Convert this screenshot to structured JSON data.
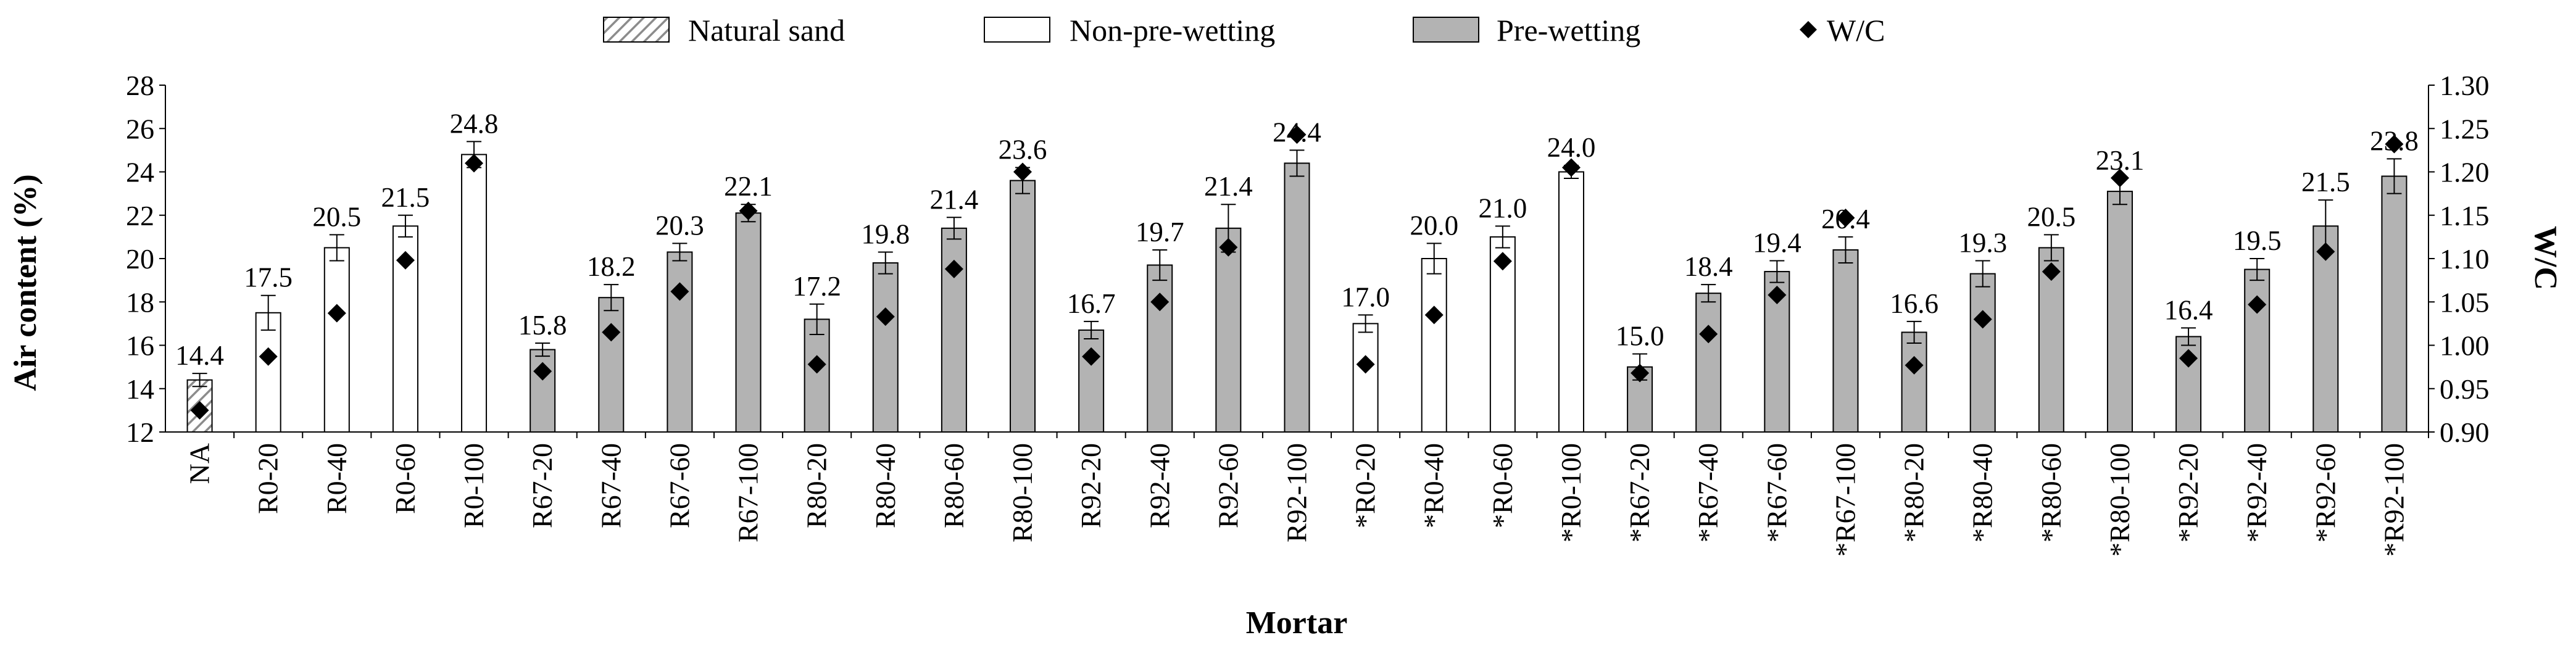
{
  "chart_data": {
    "type": "bar",
    "xlabel": "Mortar",
    "ylabel": "Air content (%)",
    "y2label": "W/C",
    "ylim": [
      12,
      28
    ],
    "y2lim": [
      0.9,
      1.3
    ],
    "yticks": [
      "12",
      "14",
      "16",
      "18",
      "20",
      "22",
      "24",
      "26",
      "28"
    ],
    "y2ticks": [
      "0.90",
      "0.95",
      "1.00",
      "1.05",
      "1.10",
      "1.15",
      "1.20",
      "1.25",
      "1.30"
    ],
    "legend_position": "top",
    "legend": [
      {
        "name": "Natural sand",
        "style": "hatched"
      },
      {
        "name": "Non-pre-wetting",
        "style": "white"
      },
      {
        "name": "Pre-wetting",
        "style": "gray"
      },
      {
        "name": "W/C",
        "style": "diamond"
      }
    ],
    "colors": {
      "pre_wetting": "#b3b3b3",
      "non_pre_wetting": "#ffffff",
      "natural_sand_hatch": "#8c8c8c",
      "marker": "#000000"
    },
    "categories": [
      "NA",
      "R0-20",
      "R0-40",
      "R0-60",
      "R0-100",
      "R67-20",
      "R67-40",
      "R67-60",
      "R67-100",
      "R80-20",
      "R80-40",
      "R80-60",
      "R80-100",
      "R92-20",
      "R92-40",
      "R92-60",
      "R92-100",
      "*R0-20",
      "*R0-40",
      "*R0-60",
      "*R0-100",
      "*R67-20",
      "*R67-40",
      "*R67-60",
      "*R67-100",
      "*R80-20",
      "*R80-40",
      "*R80-60",
      "*R80-100",
      "*R92-20",
      "*R92-40",
      "*R92-60",
      "*R92-100"
    ],
    "bar_style": [
      "hatched",
      "white",
      "white",
      "white",
      "white",
      "gray",
      "gray",
      "gray",
      "gray",
      "gray",
      "gray",
      "gray",
      "gray",
      "gray",
      "gray",
      "gray",
      "gray",
      "white",
      "white",
      "white",
      "white",
      "gray",
      "gray",
      "gray",
      "gray",
      "gray",
      "gray",
      "gray",
      "gray",
      "gray",
      "gray",
      "gray",
      "gray"
    ],
    "series": [
      {
        "name": "Air content",
        "axis": "left",
        "values": [
          14.4,
          17.5,
          20.5,
          21.5,
          24.8,
          15.8,
          18.2,
          20.3,
          22.1,
          17.2,
          19.8,
          21.4,
          23.6,
          16.7,
          19.7,
          21.4,
          24.4,
          17.0,
          20.0,
          21.0,
          24.0,
          15.0,
          18.4,
          19.4,
          20.4,
          16.6,
          19.3,
          20.5,
          23.1,
          16.4,
          19.5,
          21.5,
          23.8
        ],
        "labels": [
          "14.4",
          "17.5",
          "20.5",
          "21.5",
          "24.8",
          "15.8",
          "18.2",
          "20.3",
          "22.1",
          "17.2",
          "19.8",
          "21.4",
          "23.6",
          "16.7",
          "19.7",
          "21.4",
          "24.4",
          "17.0",
          "20.0",
          "21.0",
          "24.0",
          "15.0",
          "18.4",
          "19.4",
          "20.4",
          "16.6",
          "19.3",
          "20.5",
          "23.1",
          "16.4",
          "19.5",
          "21.5",
          "23.8"
        ],
        "errors": [
          0.3,
          0.8,
          0.6,
          0.5,
          0.6,
          0.3,
          0.6,
          0.4,
          0.4,
          0.7,
          0.5,
          0.5,
          0.6,
          0.4,
          0.7,
          1.1,
          0.6,
          0.4,
          0.7,
          0.5,
          0.3,
          0.6,
          0.4,
          0.5,
          0.6,
          0.5,
          0.6,
          0.6,
          0.6,
          0.4,
          0.5,
          1.2,
          0.8
        ]
      },
      {
        "name": "W/C",
        "axis": "right",
        "values": [
          0.925,
          0.987,
          1.037,
          1.098,
          1.21,
          0.97,
          1.015,
          1.062,
          1.155,
          0.978,
          1.033,
          1.088,
          1.2,
          0.987,
          1.05,
          1.113,
          1.243,
          0.978,
          1.035,
          1.097,
          1.205,
          0.968,
          1.013,
          1.058,
          1.147,
          0.977,
          1.03,
          1.085,
          1.193,
          0.985,
          1.047,
          1.108,
          1.232
        ]
      }
    ]
  }
}
